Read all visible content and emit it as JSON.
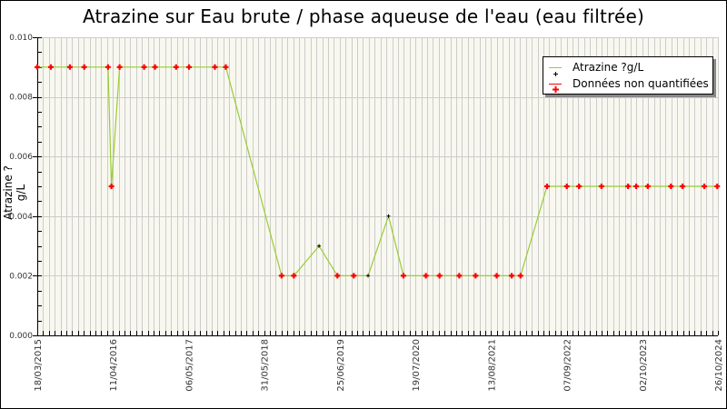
{
  "chart": {
    "title": "Atrazine sur Eau brute / phase aqueuse de l'eau (eau filtrée)",
    "ylabel": "Atrazine ?g/L",
    "legend": [
      {
        "label": "Atrazine ?g/L",
        "line_color": "#99cc33",
        "marker_color": "#000000"
      },
      {
        "label": "Données non quantifiées",
        "line_color": "#ff0000",
        "marker_color": "#ff0000"
      }
    ],
    "colors": {
      "line": "#99cc33",
      "quantified_marker": "#000000",
      "non_quantified_marker": "#ff0000",
      "plot_bg": "#f8f8f0",
      "grid": "#cccccc"
    }
  },
  "chart_data": {
    "type": "line",
    "title": "Atrazine sur Eau brute / phase aqueuse de l'eau (eau filtrée)",
    "xlabel": "",
    "ylabel": "Atrazine ?g/L",
    "ylim": [
      0.0,
      0.01
    ],
    "yticks": [
      "0.000",
      "0.002",
      "0.004",
      "0.006",
      "0.008",
      "0.010"
    ],
    "xticks": [
      "18/03/2015",
      "11/04/2016",
      "06/05/2017",
      "31/05/2018",
      "25/06/2019",
      "19/07/2020",
      "13/08/2021",
      "07/09/2022",
      "02/10/2023",
      "26/10/2024"
    ],
    "grid": true,
    "legend_position": "top-right",
    "series": [
      {
        "name": "Atrazine ?g/L",
        "note": "x positions as approximate fraction of date axis (0 = 18/03/2015, 1 = 26/10/2024); nq = Données non quantifiées",
        "points": [
          {
            "x": 0.0,
            "y": 0.009,
            "nq": true
          },
          {
            "x": 0.02,
            "y": 0.009,
            "nq": true
          },
          {
            "x": 0.048,
            "y": 0.009,
            "nq": true
          },
          {
            "x": 0.069,
            "y": 0.009,
            "nq": true
          },
          {
            "x": 0.104,
            "y": 0.009,
            "nq": true
          },
          {
            "x": 0.109,
            "y": 0.005,
            "nq": true
          },
          {
            "x": 0.121,
            "y": 0.009,
            "nq": true
          },
          {
            "x": 0.157,
            "y": 0.009,
            "nq": true
          },
          {
            "x": 0.173,
            "y": 0.009,
            "nq": true
          },
          {
            "x": 0.204,
            "y": 0.009,
            "nq": true
          },
          {
            "x": 0.223,
            "y": 0.009,
            "nq": true
          },
          {
            "x": 0.261,
            "y": 0.009,
            "nq": true
          },
          {
            "x": 0.277,
            "y": 0.009,
            "nq": true
          },
          {
            "x": 0.359,
            "y": 0.002,
            "nq": true
          },
          {
            "x": 0.377,
            "y": 0.002,
            "nq": true
          },
          {
            "x": 0.414,
            "y": 0.003,
            "nq": false
          },
          {
            "x": 0.441,
            "y": 0.002,
            "nq": true
          },
          {
            "x": 0.465,
            "y": 0.002,
            "nq": true
          },
          {
            "x": 0.486,
            "y": 0.002,
            "nq": false
          },
          {
            "x": 0.516,
            "y": 0.004,
            "nq": false
          },
          {
            "x": 0.538,
            "y": 0.002,
            "nq": true
          },
          {
            "x": 0.571,
            "y": 0.002,
            "nq": true
          },
          {
            "x": 0.591,
            "y": 0.002,
            "nq": true
          },
          {
            "x": 0.62,
            "y": 0.002,
            "nq": true
          },
          {
            "x": 0.644,
            "y": 0.002,
            "nq": true
          },
          {
            "x": 0.675,
            "y": 0.002,
            "nq": true
          },
          {
            "x": 0.697,
            "y": 0.002,
            "nq": true
          },
          {
            "x": 0.71,
            "y": 0.002,
            "nq": true
          },
          {
            "x": 0.749,
            "y": 0.005,
            "nq": true
          },
          {
            "x": 0.778,
            "y": 0.005,
            "nq": true
          },
          {
            "x": 0.796,
            "y": 0.005,
            "nq": true
          },
          {
            "x": 0.829,
            "y": 0.005,
            "nq": true
          },
          {
            "x": 0.868,
            "y": 0.005,
            "nq": true
          },
          {
            "x": 0.88,
            "y": 0.005,
            "nq": true
          },
          {
            "x": 0.897,
            "y": 0.005,
            "nq": true
          },
          {
            "x": 0.931,
            "y": 0.005,
            "nq": true
          },
          {
            "x": 0.948,
            "y": 0.005,
            "nq": true
          },
          {
            "x": 0.98,
            "y": 0.005,
            "nq": true
          },
          {
            "x": 0.999,
            "y": 0.005,
            "nq": true
          }
        ]
      }
    ]
  }
}
